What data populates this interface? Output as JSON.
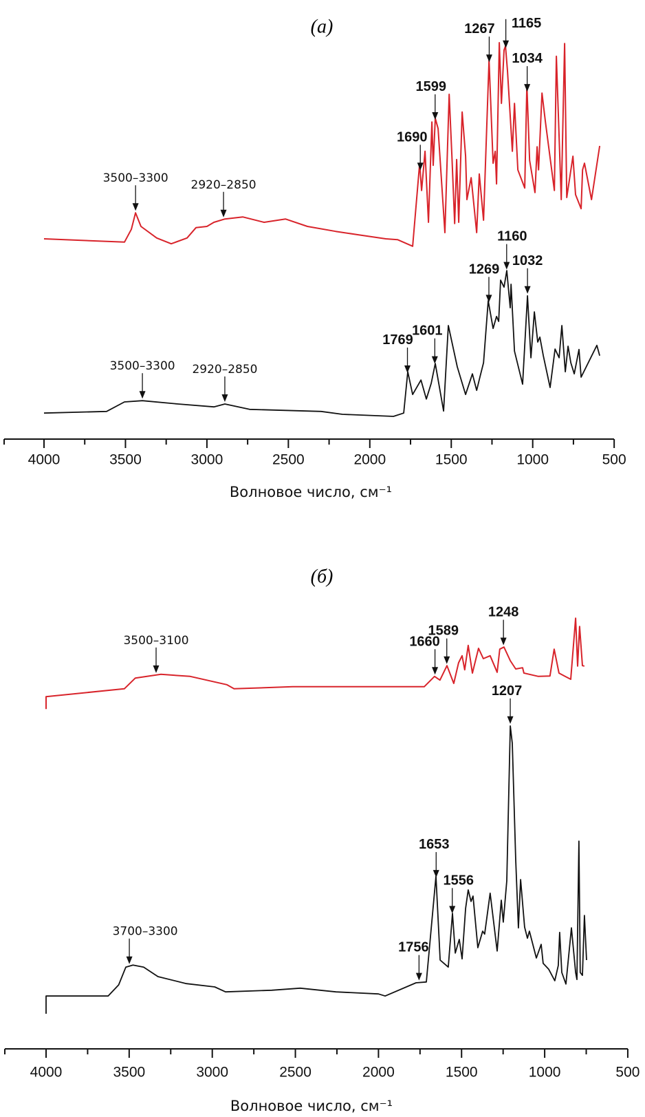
{
  "chart_data": [
    {
      "type": "line",
      "title": "(а)",
      "xlabel": "Волновое число, см⁻¹",
      "ylabel": "",
      "xlim": [
        4250,
        500
      ],
      "xticks": [
        "4000",
        "3500",
        "3000",
        "2500",
        "2000",
        "1500",
        "1000",
        "500"
      ],
      "grid": false,
      "series": [
        {
          "color": "#d8232a",
          "points": [
            [
              4000,
              48.5
            ],
            [
              3506,
              47.7
            ],
            [
              3464,
              50.8
            ],
            [
              3438,
              54.8
            ],
            [
              3405,
              51.5
            ],
            [
              3308,
              48.7
            ],
            [
              3219,
              47.3
            ],
            [
              3122,
              48.7
            ],
            [
              3067,
              51.2
            ],
            [
              3000,
              51.5
            ],
            [
              2957,
              52.5
            ],
            [
              2890,
              53.3
            ],
            [
              2780,
              53.8
            ],
            [
              2649,
              52.5
            ],
            [
              2518,
              53.3
            ],
            [
              2383,
              51.5
            ],
            [
              2210,
              50.3
            ],
            [
              2075,
              49.5
            ],
            [
              1902,
              48.5
            ],
            [
              1830,
              48.3
            ],
            [
              1737,
              46.7
            ],
            [
              1694,
              66.8
            ],
            [
              1682,
              60.2
            ],
            [
              1661,
              69.7
            ],
            [
              1640,
              52.5
            ],
            [
              1619,
              76.8
            ],
            [
              1611,
              66.3
            ],
            [
              1598,
              77.7
            ],
            [
              1581,
              75.2
            ],
            [
              1539,
              50
            ],
            [
              1513,
              83.5
            ],
            [
              1496,
              68.5
            ],
            [
              1479,
              52.2
            ],
            [
              1467,
              67.7
            ],
            [
              1454,
              52.5
            ],
            [
              1433,
              79.2
            ],
            [
              1412,
              68.5
            ],
            [
              1404,
              58
            ],
            [
              1378,
              63.3
            ],
            [
              1344,
              50
            ],
            [
              1328,
              64.2
            ],
            [
              1302,
              53
            ],
            [
              1285,
              72.5
            ],
            [
              1268,
              91.8
            ],
            [
              1243,
              66.8
            ],
            [
              1230,
              69.7
            ],
            [
              1222,
              61.8
            ],
            [
              1205,
              96
            ],
            [
              1192,
              81.3
            ],
            [
              1176,
              94.2
            ],
            [
              1167,
              95.2
            ],
            [
              1155,
              89.2
            ],
            [
              1125,
              69.7
            ],
            [
              1112,
              81.3
            ],
            [
              1091,
              65.2
            ],
            [
              1049,
              60.8
            ],
            [
              1036,
              85.8
            ],
            [
              1019,
              67.5
            ],
            [
              986,
              59.7
            ],
            [
              973,
              70.8
            ],
            [
              964,
              65.2
            ],
            [
              943,
              83.8
            ],
            [
              922,
              76.8
            ],
            [
              867,
              60.2
            ],
            [
              855,
              92.7
            ],
            [
              825,
              58
            ],
            [
              804,
              95.8
            ],
            [
              791,
              58.5
            ],
            [
              753,
              68.5
            ],
            [
              737,
              59.2
            ],
            [
              703,
              55.8
            ],
            [
              694,
              65.2
            ],
            [
              682,
              66.8
            ],
            [
              639,
              58
            ],
            [
              589,
              71
            ]
          ]
        },
        {
          "color": "#111111",
          "points": [
            [
              4000,
              6.3
            ],
            [
              3616,
              6.7
            ],
            [
              3506,
              9
            ],
            [
              3396,
              9.3
            ],
            [
              3177,
              8.5
            ],
            [
              2957,
              7.8
            ],
            [
              2890,
              8.5
            ],
            [
              2738,
              7.2
            ],
            [
              2299,
              6.7
            ],
            [
              2168,
              6
            ],
            [
              1855,
              5.5
            ],
            [
              1792,
              6.3
            ],
            [
              1767,
              16.3
            ],
            [
              1737,
              10.8
            ],
            [
              1686,
              14.3
            ],
            [
              1653,
              9.7
            ],
            [
              1623,
              13.5
            ],
            [
              1598,
              18.3
            ],
            [
              1547,
              6.8
            ],
            [
              1518,
              27.5
            ],
            [
              1463,
              17.5
            ],
            [
              1412,
              10.8
            ],
            [
              1370,
              15.8
            ],
            [
              1344,
              11.8
            ],
            [
              1323,
              15.2
            ],
            [
              1302,
              18.5
            ],
            [
              1273,
              33.5
            ],
            [
              1243,
              26.8
            ],
            [
              1222,
              29.7
            ],
            [
              1209,
              28.5
            ],
            [
              1197,
              38.5
            ],
            [
              1176,
              36.8
            ],
            [
              1159,
              40.8
            ],
            [
              1138,
              31.8
            ],
            [
              1133,
              37.5
            ],
            [
              1112,
              21.3
            ],
            [
              1062,
              13.3
            ],
            [
              1032,
              34.7
            ],
            [
              1011,
              19.7
            ],
            [
              990,
              30.8
            ],
            [
              969,
              23.5
            ],
            [
              956,
              24.7
            ],
            [
              935,
              20.2
            ],
            [
              893,
              12.5
            ],
            [
              863,
              21.8
            ],
            [
              838,
              19.7
            ],
            [
              821,
              27.5
            ],
            [
              800,
              16.3
            ],
            [
              783,
              22.5
            ],
            [
              766,
              18.5
            ],
            [
              745,
              15.8
            ],
            [
              716,
              21.7
            ],
            [
              703,
              15
            ],
            [
              606,
              22.7
            ],
            [
              589,
              20.2
            ]
          ]
        }
      ],
      "annotations": [
        {
          "series": 0,
          "wn": 3438,
          "label": "3500–3300",
          "style": "range"
        },
        {
          "series": 0,
          "wn": 2898,
          "label": "2920–2850",
          "style": "range"
        },
        {
          "series": 0,
          "wn": 1690,
          "label": "1690",
          "style": "bold"
        },
        {
          "series": 0,
          "wn": 1599,
          "label": "1599",
          "style": "bold"
        },
        {
          "series": 0,
          "wn": 1267,
          "label": "1267",
          "style": "bold"
        },
        {
          "series": 0,
          "wn": 1165,
          "label": "1165",
          "style": "bold"
        },
        {
          "series": 0,
          "wn": 1034,
          "label": "1034",
          "style": "bold"
        },
        {
          "series": 1,
          "wn": 3396,
          "label": "3500–3300",
          "style": "range"
        },
        {
          "series": 1,
          "wn": 2890,
          "label": "2920–2850",
          "style": "range"
        },
        {
          "series": 1,
          "wn": 1769,
          "label": "1769",
          "style": "bold"
        },
        {
          "series": 1,
          "wn": 1601,
          "label": "1601",
          "style": "bold"
        },
        {
          "series": 1,
          "wn": 1269,
          "label": "1269",
          "style": "bold"
        },
        {
          "series": 1,
          "wn": 1160,
          "label": "1160",
          "style": "bold"
        },
        {
          "series": 1,
          "wn": 1032,
          "label": "1032",
          "style": "bold"
        }
      ]
    },
    {
      "type": "line",
      "title": "(б)",
      "xlabel": "Волновое число, см⁻¹",
      "ylabel": "",
      "xlim": [
        4250,
        500
      ],
      "xticks": [
        "4000",
        "3500",
        "3000",
        "2500",
        "2000",
        "1500",
        "1000",
        "500"
      ],
      "grid": false,
      "series": [
        {
          "color": "#d8232a",
          "points": [
            [
              4000,
              82.3
            ],
            [
              4000,
              85.3
            ],
            [
              3529,
              87.2
            ],
            [
              3463,
              89.8
            ],
            [
              3309,
              90.7
            ],
            [
              3133,
              90.2
            ],
            [
              2913,
              88.2
            ],
            [
              2869,
              87.2
            ],
            [
              2516,
              87.7
            ],
            [
              2076,
              87.7
            ],
            [
              1856,
              87.7
            ],
            [
              1725,
              87.7
            ],
            [
              1663,
              90.2
            ],
            [
              1630,
              89.3
            ],
            [
              1588,
              92.8
            ],
            [
              1547,
              88.5
            ],
            [
              1518,
              93.5
            ],
            [
              1497,
              95.2
            ],
            [
              1481,
              91.8
            ],
            [
              1460,
              97.7
            ],
            [
              1435,
              91
            ],
            [
              1398,
              97
            ],
            [
              1369,
              94.5
            ],
            [
              1328,
              95.2
            ],
            [
              1286,
              91.2
            ],
            [
              1270,
              96.8
            ],
            [
              1245,
              97.3
            ],
            [
              1207,
              94
            ],
            [
              1174,
              92
            ],
            [
              1133,
              92.3
            ],
            [
              1125,
              91
            ],
            [
              1038,
              90.2
            ],
            [
              968,
              90.3
            ],
            [
              943,
              96.8
            ],
            [
              914,
              91
            ],
            [
              877,
              90.2
            ],
            [
              843,
              89.5
            ],
            [
              814,
              104.3
            ],
            [
              802,
              92.7
            ],
            [
              790,
              102.3
            ],
            [
              773,
              92.8
            ],
            [
              761,
              92.7
            ]
          ]
        },
        {
          "color": "#111111",
          "points": [
            [
              4000,
              8.5
            ],
            [
              4000,
              12.8
            ],
            [
              3627,
              12.8
            ],
            [
              3563,
              15.5
            ],
            [
              3520,
              19.8
            ],
            [
              3477,
              20.3
            ],
            [
              3413,
              19.8
            ],
            [
              3327,
              17.5
            ],
            [
              3156,
              15.8
            ],
            [
              2985,
              15
            ],
            [
              2920,
              13.8
            ],
            [
              2642,
              14.2
            ],
            [
              2471,
              14.7
            ],
            [
              2256,
              13.8
            ],
            [
              2000,
              13.3
            ],
            [
              1960,
              12.8
            ],
            [
              1774,
              16
            ],
            [
              1712,
              16.2
            ],
            [
              1654,
              41.8
            ],
            [
              1629,
              21.5
            ],
            [
              1580,
              19.8
            ],
            [
              1555,
              32.8
            ],
            [
              1538,
              23.2
            ],
            [
              1514,
              26.5
            ],
            [
              1497,
              21.8
            ],
            [
              1476,
              34
            ],
            [
              1460,
              38.5
            ],
            [
              1443,
              35.7
            ],
            [
              1431,
              37
            ],
            [
              1402,
              24.5
            ],
            [
              1373,
              28.5
            ],
            [
              1361,
              27.8
            ],
            [
              1328,
              37.7
            ],
            [
              1286,
              23.7
            ],
            [
              1261,
              36
            ],
            [
              1249,
              30.7
            ],
            [
              1228,
              40.7
            ],
            [
              1207,
              78.2
            ],
            [
              1195,
              74
            ],
            [
              1174,
              45.7
            ],
            [
              1158,
              29.3
            ],
            [
              1145,
              41
            ],
            [
              1121,
              29.5
            ],
            [
              1104,
              26.8
            ],
            [
              1092,
              28.5
            ],
            [
              1050,
              22
            ],
            [
              1021,
              25.3
            ],
            [
              1009,
              20.7
            ],
            [
              976,
              19.3
            ],
            [
              939,
              16.5
            ],
            [
              918,
              20.2
            ],
            [
              910,
              28.2
            ],
            [
              897,
              18.5
            ],
            [
              872,
              15.7
            ],
            [
              839,
              29.3
            ],
            [
              814,
              18.5
            ],
            [
              806,
              16.8
            ],
            [
              794,
              50.3
            ],
            [
              786,
              18.5
            ],
            [
              773,
              17.8
            ],
            [
              761,
              32.3
            ],
            [
              748,
              21.5
            ]
          ]
        }
      ],
      "annotations": [
        {
          "series": 0,
          "wn": 3338,
          "label": "3500–3100",
          "style": "range"
        },
        {
          "series": 0,
          "wn": 1660,
          "label": "1660",
          "style": "bold"
        },
        {
          "series": 0,
          "wn": 1589,
          "label": "1589",
          "style": "bold"
        },
        {
          "series": 0,
          "wn": 1248,
          "label": "1248",
          "style": "bold"
        },
        {
          "series": 1,
          "wn": 3499,
          "label": "3700–3300",
          "style": "range"
        },
        {
          "series": 1,
          "wn": 1756,
          "label": "1756",
          "style": "bold"
        },
        {
          "series": 1,
          "wn": 1653,
          "label": "1653",
          "style": "bold"
        },
        {
          "series": 1,
          "wn": 1556,
          "label": "1556",
          "style": "bold"
        },
        {
          "series": 1,
          "wn": 1207,
          "label": "1207",
          "style": "bold"
        }
      ]
    }
  ]
}
